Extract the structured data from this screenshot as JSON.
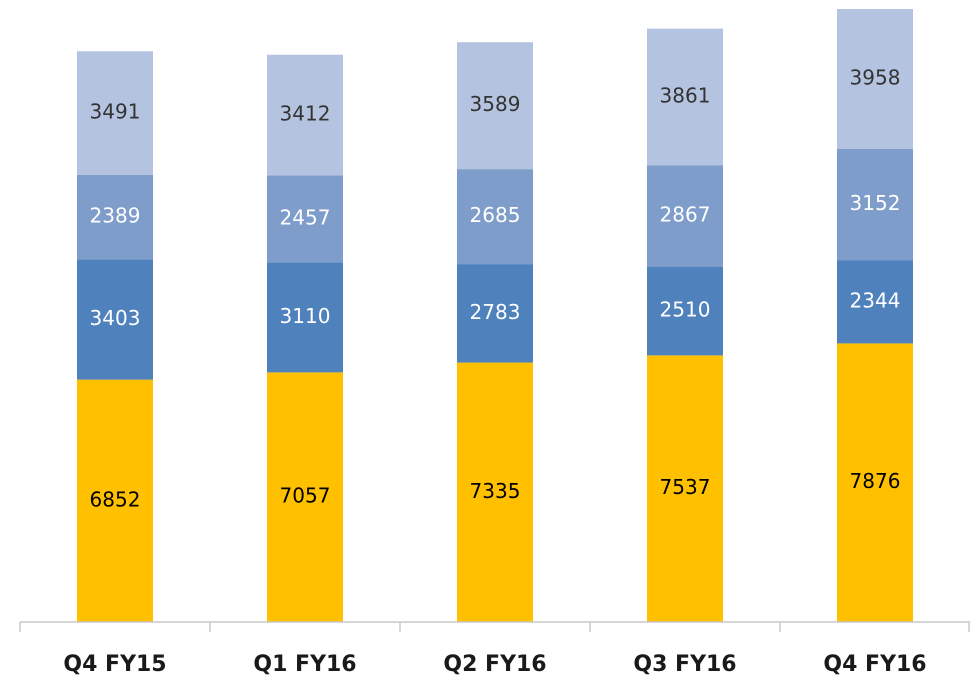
{
  "chart_data": {
    "type": "bar",
    "stacked": true,
    "categories": [
      "Q4 FY15",
      "Q1 FY16",
      "Q2 FY16",
      "Q3 FY16",
      "Q4 FY16"
    ],
    "series": [
      {
        "color": "#FFC000",
        "values": [
          6852,
          7057,
          7335,
          7537,
          7876
        ]
      },
      {
        "color": "#4F81BD",
        "values": [
          3403,
          3110,
          2783,
          2510,
          2344
        ]
      },
      {
        "color": "#7F9DCA",
        "values": [
          2389,
          2457,
          2685,
          2867,
          3152
        ]
      },
      {
        "color": "#B4C3DF",
        "values": [
          3491,
          3412,
          3589,
          3861,
          3958
        ]
      }
    ]
  }
}
